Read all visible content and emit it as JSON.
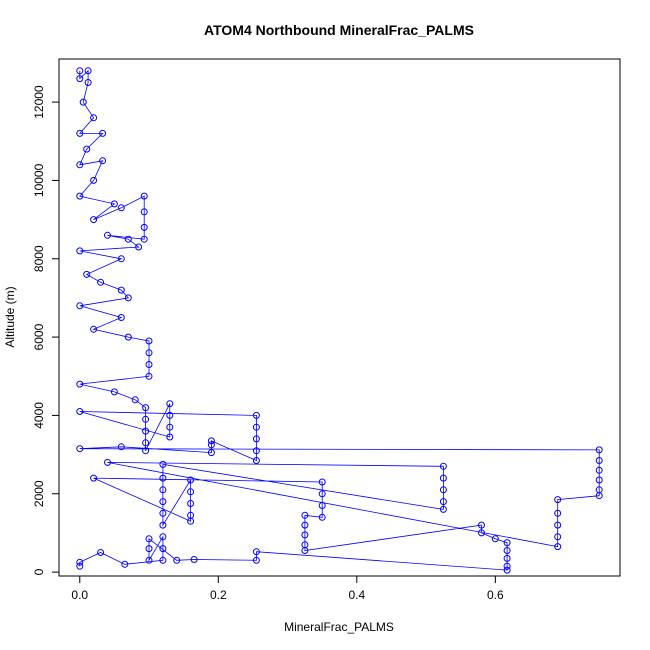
{
  "chart_data": {
    "type": "scatter",
    "title": "ATOM4 Northbound MineralFrac_PALMS",
    "xlabel": "MineralFrac_PALMS",
    "ylabel": "Altitude (m)",
    "xlim": [
      -0.03,
      0.78
    ],
    "ylim": [
      -100,
      13100
    ],
    "x_ticks": [
      0,
      0.2,
      0.4,
      0.6
    ],
    "x_tick_labels": [
      "0.0",
      "0.2",
      "0.4",
      "0.6"
    ],
    "y_ticks": [
      0,
      2000,
      4000,
      6000,
      8000,
      10000,
      12000
    ],
    "y_tick_labels": [
      "0",
      "2000",
      "4000",
      "6000",
      "8000",
      "10000",
      "12000"
    ],
    "marker": "open-circle",
    "connected": true,
    "colors": {
      "series": "#0000ff",
      "axis": "#000000"
    },
    "series": [
      {
        "values": [
          [
            0.0,
            12800
          ],
          [
            0.0,
            12600
          ],
          [
            0.012,
            12800
          ],
          [
            0.012,
            12500
          ],
          [
            0.005,
            12000
          ],
          [
            0.02,
            11600
          ],
          [
            0.0,
            11200
          ],
          [
            0.033,
            11200
          ],
          [
            0.01,
            10800
          ],
          [
            0.0,
            10400
          ],
          [
            0.033,
            10500
          ],
          [
            0.02,
            10000
          ],
          [
            0.0,
            9600
          ],
          [
            0.05,
            9400
          ],
          [
            0.02,
            9000
          ],
          [
            0.06,
            9300
          ],
          [
            0.093,
            9600
          ],
          [
            0.093,
            9200
          ],
          [
            0.093,
            8800
          ],
          [
            0.093,
            8500
          ],
          [
            0.04,
            8600
          ],
          [
            0.07,
            8500
          ],
          [
            0.085,
            8300
          ],
          [
            0.0,
            8200
          ],
          [
            0.06,
            8000
          ],
          [
            0.01,
            7600
          ],
          [
            0.03,
            7400
          ],
          [
            0.06,
            7200
          ],
          [
            0.07,
            7000
          ],
          [
            0.0,
            6800
          ],
          [
            0.06,
            6500
          ],
          [
            0.02,
            6200
          ],
          [
            0.07,
            6000
          ],
          [
            0.1,
            5900
          ],
          [
            0.1,
            5600
          ],
          [
            0.1,
            5300
          ],
          [
            0.1,
            5000
          ],
          [
            0.0,
            4800
          ],
          [
            0.05,
            4600
          ],
          [
            0.08,
            4400
          ],
          [
            0.095,
            4200
          ],
          [
            0.095,
            3900
          ],
          [
            0.095,
            3600
          ],
          [
            0.095,
            3300
          ],
          [
            0.095,
            3100
          ],
          [
            0.13,
            4300
          ],
          [
            0.13,
            4000
          ],
          [
            0.13,
            3700
          ],
          [
            0.13,
            3450
          ],
          [
            0.0,
            4100
          ],
          [
            0.255,
            4000
          ],
          [
            0.255,
            3700
          ],
          [
            0.255,
            3400
          ],
          [
            0.255,
            3100
          ],
          [
            0.255,
            2850
          ],
          [
            0.19,
            3350
          ],
          [
            0.19,
            3250
          ],
          [
            0.19,
            3050
          ],
          [
            0.06,
            3200
          ],
          [
            0.0,
            3150
          ],
          [
            0.75,
            3120
          ],
          [
            0.75,
            2850
          ],
          [
            0.75,
            2600
          ],
          [
            0.75,
            2350
          ],
          [
            0.75,
            2100
          ],
          [
            0.75,
            1950
          ],
          [
            0.69,
            1850
          ],
          [
            0.69,
            1500
          ],
          [
            0.69,
            1200
          ],
          [
            0.69,
            900
          ],
          [
            0.69,
            650
          ],
          [
            0.04,
            2800
          ],
          [
            0.525,
            2700
          ],
          [
            0.525,
            2400
          ],
          [
            0.525,
            2100
          ],
          [
            0.525,
            1800
          ],
          [
            0.525,
            1600
          ],
          [
            0.12,
            2750
          ],
          [
            0.12,
            2400
          ],
          [
            0.12,
            2100
          ],
          [
            0.12,
            1800
          ],
          [
            0.12,
            1500
          ],
          [
            0.12,
            1200
          ],
          [
            0.16,
            2350
          ],
          [
            0.16,
            2050
          ],
          [
            0.16,
            1750
          ],
          [
            0.16,
            1450
          ],
          [
            0.16,
            1300
          ],
          [
            0.02,
            2400
          ],
          [
            0.35,
            2300
          ],
          [
            0.35,
            2000
          ],
          [
            0.35,
            1700
          ],
          [
            0.35,
            1400
          ],
          [
            0.325,
            1450
          ],
          [
            0.325,
            1200
          ],
          [
            0.325,
            950
          ],
          [
            0.325,
            700
          ],
          [
            0.325,
            550
          ],
          [
            0.58,
            1200
          ],
          [
            0.58,
            1000
          ],
          [
            0.6,
            850
          ],
          [
            0.617,
            750
          ],
          [
            0.617,
            550
          ],
          [
            0.617,
            350
          ],
          [
            0.617,
            150
          ],
          [
            0.617,
            50
          ],
          [
            0.255,
            520
          ],
          [
            0.255,
            300
          ],
          [
            0.165,
            320
          ],
          [
            0.14,
            300
          ],
          [
            0.1,
            850
          ],
          [
            0.1,
            600
          ],
          [
            0.1,
            300
          ],
          [
            0.12,
            900
          ],
          [
            0.12,
            600
          ],
          [
            0.12,
            300
          ],
          [
            0.065,
            200
          ],
          [
            0.03,
            500
          ],
          [
            0.0,
            250
          ],
          [
            0.0,
            150
          ]
        ]
      }
    ]
  }
}
